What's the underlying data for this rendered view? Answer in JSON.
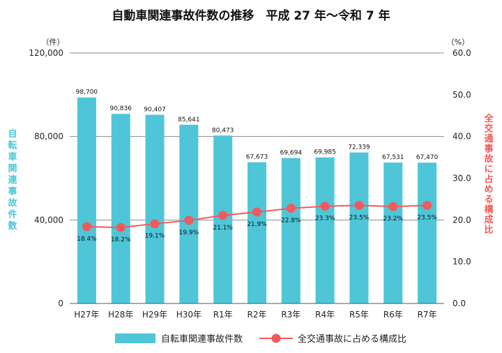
{
  "chart_data": {
    "type": "bar",
    "title": "自動車関連事故件数の推移　平成 27 年〜令和 7 年",
    "categories": [
      "H27年",
      "H28年",
      "H29年",
      "H30年",
      "R1年",
      "R2年",
      "R3年",
      "R4年",
      "R5年",
      "R6年",
      "R7年"
    ],
    "series": [
      {
        "name": "自転車関連事故件数",
        "type": "bar",
        "axis": "left",
        "color": "#4ec6d8",
        "values": [
          98700,
          90836,
          90407,
          85641,
          80473,
          67673,
          69694,
          69985,
          72339,
          67531,
          67470
        ],
        "labels": [
          "98,700",
          "90,836",
          "90,407",
          "85,641",
          "80,473",
          "67,673",
          "69,694",
          "69,985",
          "72,339",
          "67,531",
          "67,470"
        ]
      },
      {
        "name": "全交通事故に占める構成比",
        "type": "line",
        "axis": "right",
        "color": "#f05a5a",
        "values": [
          18.4,
          18.2,
          19.1,
          19.9,
          21.1,
          21.9,
          22.8,
          23.3,
          23.5,
          23.2,
          23.5
        ],
        "labels": [
          "18.4%",
          "18.2%",
          "19.1%",
          "19.9%",
          "21.1%",
          "21.9%",
          "22.8%",
          "23.3%",
          "23.5%",
          "23.2%",
          "23.5%"
        ]
      }
    ],
    "left_axis": {
      "unit": "（件）",
      "label": "自転車関連事故件数",
      "label_color": "#4ec6d8",
      "ylim": [
        0,
        120000
      ],
      "ticks": [
        0,
        40000,
        80000,
        120000
      ],
      "tick_labels": [
        "0",
        "40,000",
        "80,000",
        "120,000"
      ]
    },
    "right_axis": {
      "unit": "（%）",
      "label": "全交通事故に占める構成比",
      "label_color": "#f05a5a",
      "ylim": [
        0,
        60
      ],
      "ticks": [
        0,
        10,
        20,
        30,
        40,
        50,
        60
      ],
      "tick_labels": [
        "0.0",
        "10.0",
        "20.0",
        "30.0",
        "40.0",
        "50.0",
        "60.0"
      ]
    },
    "grid": "horizontal at left-axis ticks",
    "legend_position": "bottom"
  }
}
